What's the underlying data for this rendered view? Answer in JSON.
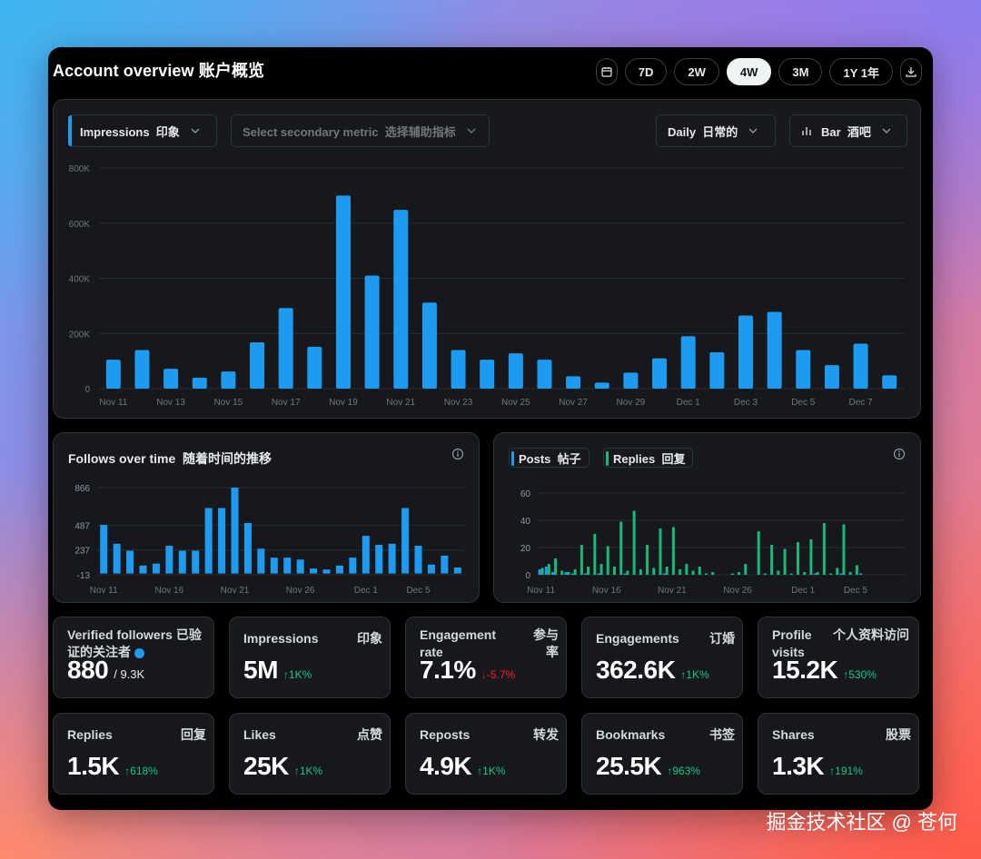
{
  "header": {
    "title": "Account overview  账户概览",
    "ranges": [
      "7D",
      "2W",
      "4W",
      "3M",
      "1Y 1年"
    ],
    "active_range": "4W"
  },
  "main_chart": {
    "primary_metric": "Impressions  印象",
    "secondary_metric_placeholder": "Select secondary metric  选择辅助指标",
    "interval": "Daily  日常的",
    "chart_type": "Bar  酒吧"
  },
  "follows_panel": {
    "title": "Follows over time  随着时间的推移"
  },
  "posts_panel": {
    "posts_label": "Posts  帖子",
    "replies_label": "Replies  回复"
  },
  "colors": {
    "accent": "#1d9bf0",
    "replies": "#16b978",
    "up": "#16c784",
    "down": "#f4212e"
  },
  "chart_data": [
    {
      "type": "bar",
      "title": "",
      "categories": [
        "Nov 11",
        "Nov 12",
        "Nov 13",
        "Nov 14",
        "Nov 15",
        "Nov 16",
        "Nov 17",
        "Nov 18",
        "Nov 19",
        "Nov 20",
        "Nov 21",
        "Nov 22",
        "Nov 23",
        "Nov 24",
        "Nov 25",
        "Nov 26",
        "Nov 27",
        "Nov 28",
        "Nov 29",
        "Nov 30",
        "Dec 1",
        "Dec 2",
        "Dec 3",
        "Dec 4",
        "Dec 5",
        "Dec 6",
        "Dec 7",
        "Dec 8"
      ],
      "tick_labels": [
        "Nov 11",
        "Nov 13",
        "Nov 15",
        "Nov 17",
        "Nov 19",
        "Nov 21",
        "Nov 23",
        "Nov 25",
        "Nov 27",
        "Nov 29",
        "Dec 1",
        "Dec 3",
        "Dec 5",
        "Dec 7"
      ],
      "values": [
        105000,
        140000,
        72000,
        40000,
        62000,
        168000,
        292000,
        152000,
        700000,
        410000,
        648000,
        312000,
        140000,
        105000,
        128000,
        105000,
        45000,
        22000,
        58000,
        110000,
        190000,
        132000,
        265000,
        278000,
        140000,
        85000,
        163000,
        48000
      ],
      "ylim": [
        0,
        800000
      ],
      "yticks": [
        0,
        200000,
        400000,
        600000,
        800000
      ],
      "ytick_labels": [
        "0",
        "200K",
        "400K",
        "600K",
        "800K"
      ],
      "color": "#1d9bf0",
      "grid": true
    },
    {
      "type": "bar",
      "title": "Follows over time  随着时间的推移",
      "categories": [
        "Nov 11",
        "Nov 12",
        "Nov 13",
        "Nov 14",
        "Nov 15",
        "Nov 16",
        "Nov 17",
        "Nov 18",
        "Nov 19",
        "Nov 20",
        "Nov 21",
        "Nov 22",
        "Nov 23",
        "Nov 24",
        "Nov 25",
        "Nov 26",
        "Nov 27",
        "Nov 28",
        "Nov 29",
        "Nov 30",
        "Dec 1",
        "Dec 2",
        "Dec 3",
        "Dec 4",
        "Dec 5",
        "Dec 6",
        "Dec 7",
        "Dec 8"
      ],
      "tick_labels": [
        "Nov 11",
        "Nov 16",
        "Nov 21",
        "Nov 26",
        "Dec 1",
        "Dec 5"
      ],
      "tick_indices": [
        0,
        5,
        10,
        15,
        20,
        24
      ],
      "values": [
        490,
        300,
        230,
        80,
        100,
        280,
        230,
        230,
        660,
        660,
        866,
        510,
        250,
        160,
        160,
        140,
        50,
        40,
        80,
        160,
        380,
        290,
        300,
        660,
        280,
        90,
        180,
        60
      ],
      "ylim": [
        -13,
        866
      ],
      "yticks": [
        -13,
        237,
        487,
        866
      ],
      "ytick_labels": [
        "-13",
        "237",
        "487",
        "866"
      ],
      "color": "#1d9bf0"
    },
    {
      "type": "bar",
      "title": "",
      "categories_count": 56,
      "tick_labels": [
        "Nov 11",
        "Nov 16",
        "Nov 21",
        "Nov 26",
        "Dec 1",
        "Dec 5"
      ],
      "tick_indices": [
        0,
        10,
        20,
        30,
        40,
        48
      ],
      "series": [
        {
          "name": "Posts  帖子",
          "color": "#1d9bf0",
          "values": [
            4,
            6,
            2,
            0,
            2,
            1,
            0,
            1,
            0,
            1,
            0,
            0,
            0,
            1,
            0,
            0,
            0,
            0,
            0,
            1,
            0,
            0,
            0,
            0,
            0,
            0,
            0,
            0,
            0,
            0,
            0,
            0,
            0,
            0,
            0,
            0,
            0,
            0,
            0,
            0,
            0,
            0,
            1,
            0,
            0,
            0,
            1,
            0,
            0,
            1,
            0,
            0,
            0,
            0,
            0,
            0
          ]
        },
        {
          "name": "Replies  回复",
          "color": "#16b978",
          "values": [
            5,
            8,
            12,
            3,
            2,
            4,
            22,
            6,
            30,
            8,
            21,
            6,
            39,
            3,
            47,
            4,
            22,
            5,
            34,
            6,
            35,
            4,
            8,
            3,
            6,
            1,
            2,
            0,
            0,
            1,
            2,
            8,
            0,
            32,
            1,
            22,
            3,
            19,
            1,
            24,
            2,
            26,
            2,
            38,
            1,
            5,
            37,
            2,
            7,
            0,
            0,
            0,
            0,
            0,
            0,
            0
          ]
        }
      ],
      "ylim": [
        0,
        60
      ],
      "yticks": [
        0,
        20,
        40,
        60
      ],
      "ytick_labels": [
        "0",
        "20",
        "40",
        "60"
      ]
    }
  ],
  "stats_row1": [
    {
      "label": "Verified followers 已验证的关注者",
      "label_cn": "",
      "value": "880",
      "sub": "/ 9.3K",
      "delta": "",
      "dir": ""
    },
    {
      "label": "Impressions",
      "label_cn": "印象",
      "value": "5M",
      "sub": "",
      "delta": "↑1K%",
      "dir": "up"
    },
    {
      "label": "Engagement rate",
      "label_cn": "参与率",
      "value": "7.1%",
      "sub": "",
      "delta": "↓-5.7%",
      "dir": "down"
    },
    {
      "label": "Engagements",
      "label_cn": "订婚",
      "value": "362.6K",
      "sub": "",
      "delta": "↑1K%",
      "dir": "up"
    },
    {
      "label": "Profile visits",
      "label_cn": "个人资料访问",
      "value": "15.2K",
      "sub": "",
      "delta": "↑530%",
      "dir": "up"
    }
  ],
  "stats_row2": [
    {
      "label": "Replies",
      "label_cn": "回复",
      "value": "1.5K",
      "delta": "↑618%",
      "dir": "up"
    },
    {
      "label": "Likes",
      "label_cn": "点赞",
      "value": "25K",
      "delta": "↑1K%",
      "dir": "up"
    },
    {
      "label": "Reposts",
      "label_cn": "转发",
      "value": "4.9K",
      "delta": "↑1K%",
      "dir": "up"
    },
    {
      "label": "Bookmarks",
      "label_cn": "书签",
      "value": "25.5K",
      "delta": "↑963%",
      "dir": "up"
    },
    {
      "label": "Shares",
      "label_cn": "股票",
      "value": "1.3K",
      "delta": "↑191%",
      "dir": "up"
    }
  ],
  "watermark": "掘金技术社区 @ 苍何"
}
